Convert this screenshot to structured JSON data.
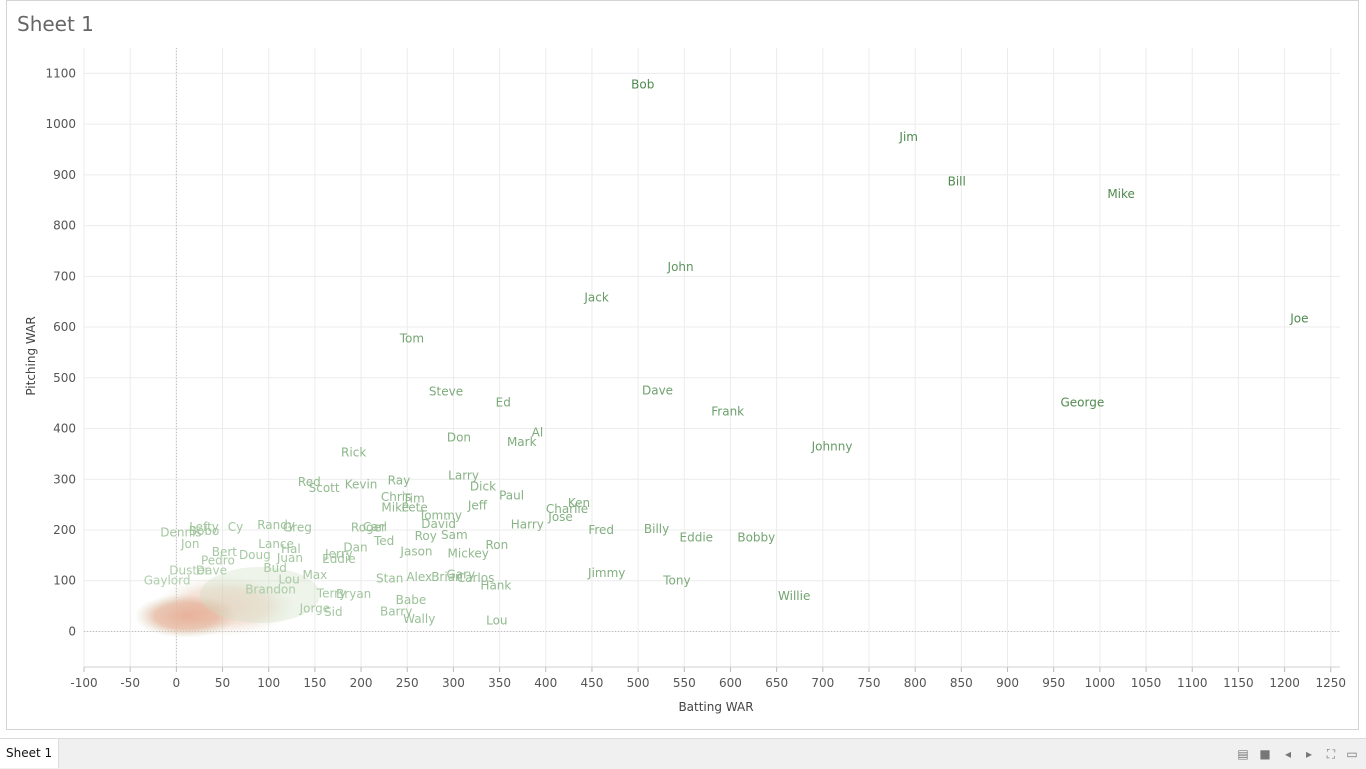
{
  "sheet": {
    "title": "Sheet 1",
    "tab_label": "Sheet 1"
  },
  "colors": {
    "dark": "#4f8a4f",
    "mid": "#9cc49c",
    "light": "#c6dfc1",
    "dense": "#e8b29e",
    "grid": "#ececec"
  },
  "chart_data": {
    "type": "scatter",
    "title": "Sheet 1",
    "xlabel": "Batting WAR",
    "ylabel": "Pitching WAR",
    "xlim": [
      -100,
      1260
    ],
    "ylim": [
      -70,
      1150
    ],
    "xticks": [
      -100,
      -50,
      0,
      50,
      100,
      150,
      200,
      250,
      300,
      350,
      400,
      450,
      500,
      550,
      600,
      650,
      700,
      750,
      800,
      850,
      900,
      950,
      1000,
      1050,
      1100,
      1150,
      1200,
      1250
    ],
    "yticks": [
      0,
      100,
      200,
      300,
      400,
      500,
      600,
      700,
      800,
      900,
      1000,
      1100
    ],
    "points": [
      {
        "label": "Bob",
        "x": 505,
        "y": 1078
      },
      {
        "label": "Jim",
        "x": 793,
        "y": 975
      },
      {
        "label": "Bill",
        "x": 845,
        "y": 887
      },
      {
        "label": "Mike",
        "x": 1023,
        "y": 862
      },
      {
        "label": "John",
        "x": 546,
        "y": 718
      },
      {
        "label": "Jack",
        "x": 455,
        "y": 658
      },
      {
        "label": "Joe",
        "x": 1216,
        "y": 617
      },
      {
        "label": "Tom",
        "x": 255,
        "y": 577
      },
      {
        "label": "Steve",
        "x": 292,
        "y": 473
      },
      {
        "label": "Dave",
        "x": 521,
        "y": 475
      },
      {
        "label": "Ed",
        "x": 354,
        "y": 451
      },
      {
        "label": "George",
        "x": 981,
        "y": 451
      },
      {
        "label": "Frank",
        "x": 597,
        "y": 434
      },
      {
        "label": "Al",
        "x": 391,
        "y": 392
      },
      {
        "label": "Don",
        "x": 306,
        "y": 382
      },
      {
        "label": "Mark",
        "x": 374,
        "y": 373
      },
      {
        "label": "Johnny",
        "x": 710,
        "y": 365
      },
      {
        "label": "Rick",
        "x": 192,
        "y": 353
      },
      {
        "label": "Larry",
        "x": 311,
        "y": 307
      },
      {
        "label": "Ray",
        "x": 241,
        "y": 298
      },
      {
        "label": "Red",
        "x": 144,
        "y": 295
      },
      {
        "label": "Kevin",
        "x": 200,
        "y": 290
      },
      {
        "label": "Dick",
        "x": 332,
        "y": 286
      },
      {
        "label": "Scott",
        "x": 160,
        "y": 283
      },
      {
        "label": "Paul",
        "x": 363,
        "y": 268
      },
      {
        "label": "Chris",
        "x": 238,
        "y": 265
      },
      {
        "label": "Tim",
        "x": 257,
        "y": 262
      },
      {
        "label": "Ken",
        "x": 436,
        "y": 253
      },
      {
        "label": "Jeff",
        "x": 326,
        "y": 248
      },
      {
        "label": "Charlie",
        "x": 423,
        "y": 241
      },
      {
        "label": "Mike",
        "x": 237,
        "y": 244
      },
      {
        "label": "Pete",
        "x": 258,
        "y": 244
      },
      {
        "label": "Tommy",
        "x": 286,
        "y": 229
      },
      {
        "label": "Jose",
        "x": 416,
        "y": 226
      },
      {
        "label": "David",
        "x": 284,
        "y": 212
      },
      {
        "label": "Harry",
        "x": 380,
        "y": 211
      },
      {
        "label": "Roger",
        "x": 208,
        "y": 205
      },
      {
        "label": "Carl",
        "x": 215,
        "y": 206
      },
      {
        "label": "Lefty",
        "x": 30,
        "y": 206
      },
      {
        "label": "Cy",
        "x": 64,
        "y": 206
      },
      {
        "label": "Randy",
        "x": 108,
        "y": 210
      },
      {
        "label": "Greg",
        "x": 131,
        "y": 205
      },
      {
        "label": "Fred",
        "x": 460,
        "y": 200
      },
      {
        "label": "Billy",
        "x": 520,
        "y": 202
      },
      {
        "label": "Dennis",
        "x": 5,
        "y": 195
      },
      {
        "label": "Bobo",
        "x": 30,
        "y": 198
      },
      {
        "label": "Roy",
        "x": 270,
        "y": 188
      },
      {
        "label": "Sam",
        "x": 301,
        "y": 190
      },
      {
        "label": "Eddie",
        "x": 563,
        "y": 185
      },
      {
        "label": "Bobby",
        "x": 628,
        "y": 185
      },
      {
        "label": "Ted",
        "x": 225,
        "y": 178
      },
      {
        "label": "Ron",
        "x": 347,
        "y": 170
      },
      {
        "label": "Jon",
        "x": 15,
        "y": 172
      },
      {
        "label": "Dan",
        "x": 194,
        "y": 166
      },
      {
        "label": "Lance",
        "x": 108,
        "y": 172
      },
      {
        "label": "Hal",
        "x": 124,
        "y": 163
      },
      {
        "label": "Bert",
        "x": 52,
        "y": 157
      },
      {
        "label": "Jason",
        "x": 260,
        "y": 158
      },
      {
        "label": "Mickey",
        "x": 316,
        "y": 154
      },
      {
        "label": "Doug",
        "x": 85,
        "y": 151
      },
      {
        "label": "Juan",
        "x": 123,
        "y": 145
      },
      {
        "label": "Jerry",
        "x": 176,
        "y": 153
      },
      {
        "label": "Eddie",
        "x": 176,
        "y": 143
      },
      {
        "label": "Pedro",
        "x": 45,
        "y": 140
      },
      {
        "label": "Bud",
        "x": 107,
        "y": 125
      },
      {
        "label": "Duster",
        "x": 14,
        "y": 120
      },
      {
        "label": "Dave",
        "x": 38,
        "y": 120
      },
      {
        "label": "Jimmy",
        "x": 466,
        "y": 115
      },
      {
        "label": "Max",
        "x": 150,
        "y": 111
      },
      {
        "label": "Stan",
        "x": 231,
        "y": 104
      },
      {
        "label": "Alex",
        "x": 263,
        "y": 107
      },
      {
        "label": "Brian",
        "x": 293,
        "y": 107
      },
      {
        "label": "Gary",
        "x": 308,
        "y": 112
      },
      {
        "label": "Carlos",
        "x": 324,
        "y": 105
      },
      {
        "label": "Tony",
        "x": 542,
        "y": 100
      },
      {
        "label": "Hank",
        "x": 346,
        "y": 91
      },
      {
        "label": "Gaylord",
        "x": -10,
        "y": 100
      },
      {
        "label": "Lou",
        "x": 122,
        "y": 102
      },
      {
        "label": "Brandon",
        "x": 102,
        "y": 83
      },
      {
        "label": "Terry",
        "x": 168,
        "y": 75
      },
      {
        "label": "Bryan",
        "x": 192,
        "y": 74
      },
      {
        "label": "Willie",
        "x": 669,
        "y": 70
      },
      {
        "label": "Babe",
        "x": 254,
        "y": 62
      },
      {
        "label": "Barry",
        "x": 238,
        "y": 39
      },
      {
        "label": "Wally",
        "x": 263,
        "y": 25
      },
      {
        "label": "Lou",
        "x": 347,
        "y": 22
      },
      {
        "label": "Sid",
        "x": 170,
        "y": 38
      },
      {
        "label": "Jorge",
        "x": 150,
        "y": 45
      }
    ]
  }
}
